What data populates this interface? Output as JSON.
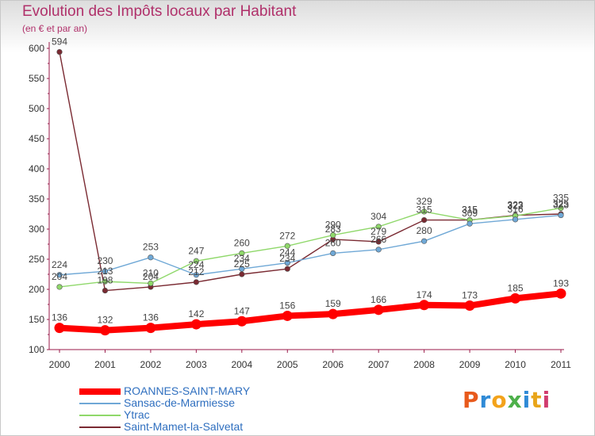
{
  "title": "Evolution des Impôts locaux par Habitant",
  "subtitle": "(en € et par an)",
  "logo_text": "Proxiti",
  "logo_colors": [
    "#e85a1c",
    "#2f8ad6",
    "#f3a31b",
    "#4db04a",
    "#2f8ad6",
    "#e8a51a",
    "#d13c6f"
  ],
  "chart_data": {
    "type": "line",
    "x": [
      2000,
      2001,
      2002,
      2003,
      2004,
      2005,
      2006,
      2007,
      2008,
      2009,
      2010,
      2011
    ],
    "ylim": [
      100,
      600
    ],
    "yticks": [
      100,
      150,
      200,
      250,
      300,
      350,
      400,
      450,
      500,
      550,
      600
    ],
    "grid": false,
    "series": [
      {
        "name": "ROANNES-SAINT-MARY",
        "color": "#ff0000",
        "values": [
          136,
          132,
          136,
          142,
          147,
          156,
          159,
          166,
          174,
          173,
          185,
          193
        ]
      },
      {
        "name": "Sansac-de-Marmiesse",
        "color": "#6fa8d6",
        "values": [
          224,
          230,
          253,
          224,
          234,
          244,
          260,
          266,
          280,
          309,
          316,
          323
        ]
      },
      {
        "name": "Ytrac",
        "color": "#8fd86a",
        "values": [
          204,
          213,
          210,
          247,
          260,
          272,
          290,
          304,
          329,
          315,
          322,
          335
        ]
      },
      {
        "name": "Saint-Mamet-la-Salvetat",
        "color": "#7a2a32",
        "values": [
          594,
          198,
          204,
          212,
          225,
          234,
          283,
          279,
          315,
          315,
          323,
          325
        ]
      }
    ]
  }
}
